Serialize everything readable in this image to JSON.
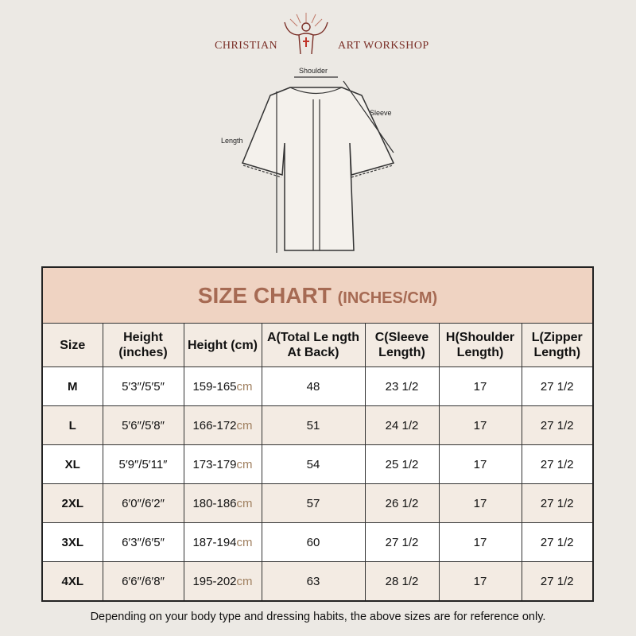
{
  "brand": {
    "left": "CHRISTIAN",
    "right": "ART WORKSHOP"
  },
  "diagram": {
    "shoulder": "Shoulder",
    "sleeve": "Sleeve",
    "length": "Length"
  },
  "chart": {
    "title": "SIZE CHART",
    "unit": "(INCHES/CM)",
    "headers": [
      "Size",
      "Height (inches)",
      "Height (cm)",
      "A(Total Le ngth At Back)",
      "C(Sleeve Length)",
      "H(Shoulder Length)",
      "L(Zipper Length)"
    ],
    "cm_suffix": "cm",
    "rows": [
      {
        "size": "M",
        "in": "5′3″/5′5″",
        "cm": "159-165",
        "a": "48",
        "c": "23 1/2",
        "h": "17",
        "l": "27 1/2"
      },
      {
        "size": "L",
        "in": "5′6″/5′8″",
        "cm": "166-172",
        "a": "51",
        "c": "24 1/2",
        "h": "17",
        "l": "27 1/2"
      },
      {
        "size": "XL",
        "in": "5′9″/5′11″",
        "cm": "173-179",
        "a": "54",
        "c": "25 1/2",
        "h": "17",
        "l": "27 1/2"
      },
      {
        "size": "2XL",
        "in": "6′0″/6′2″",
        "cm": "180-186",
        "a": "57",
        "c": "26 1/2",
        "h": "17",
        "l": "27 1/2"
      },
      {
        "size": "3XL",
        "in": "6′3″/6′5″",
        "cm": "187-194",
        "a": "60",
        "c": "27 1/2",
        "h": "17",
        "l": "27 1/2"
      },
      {
        "size": "4XL",
        "in": "6′6″/6′8″",
        "cm": "195-202",
        "a": "63",
        "c": "28 1/2",
        "h": "17",
        "l": "27 1/2"
      }
    ]
  },
  "note": "Depending on your body type and dressing habits, the above sizes are for reference only."
}
